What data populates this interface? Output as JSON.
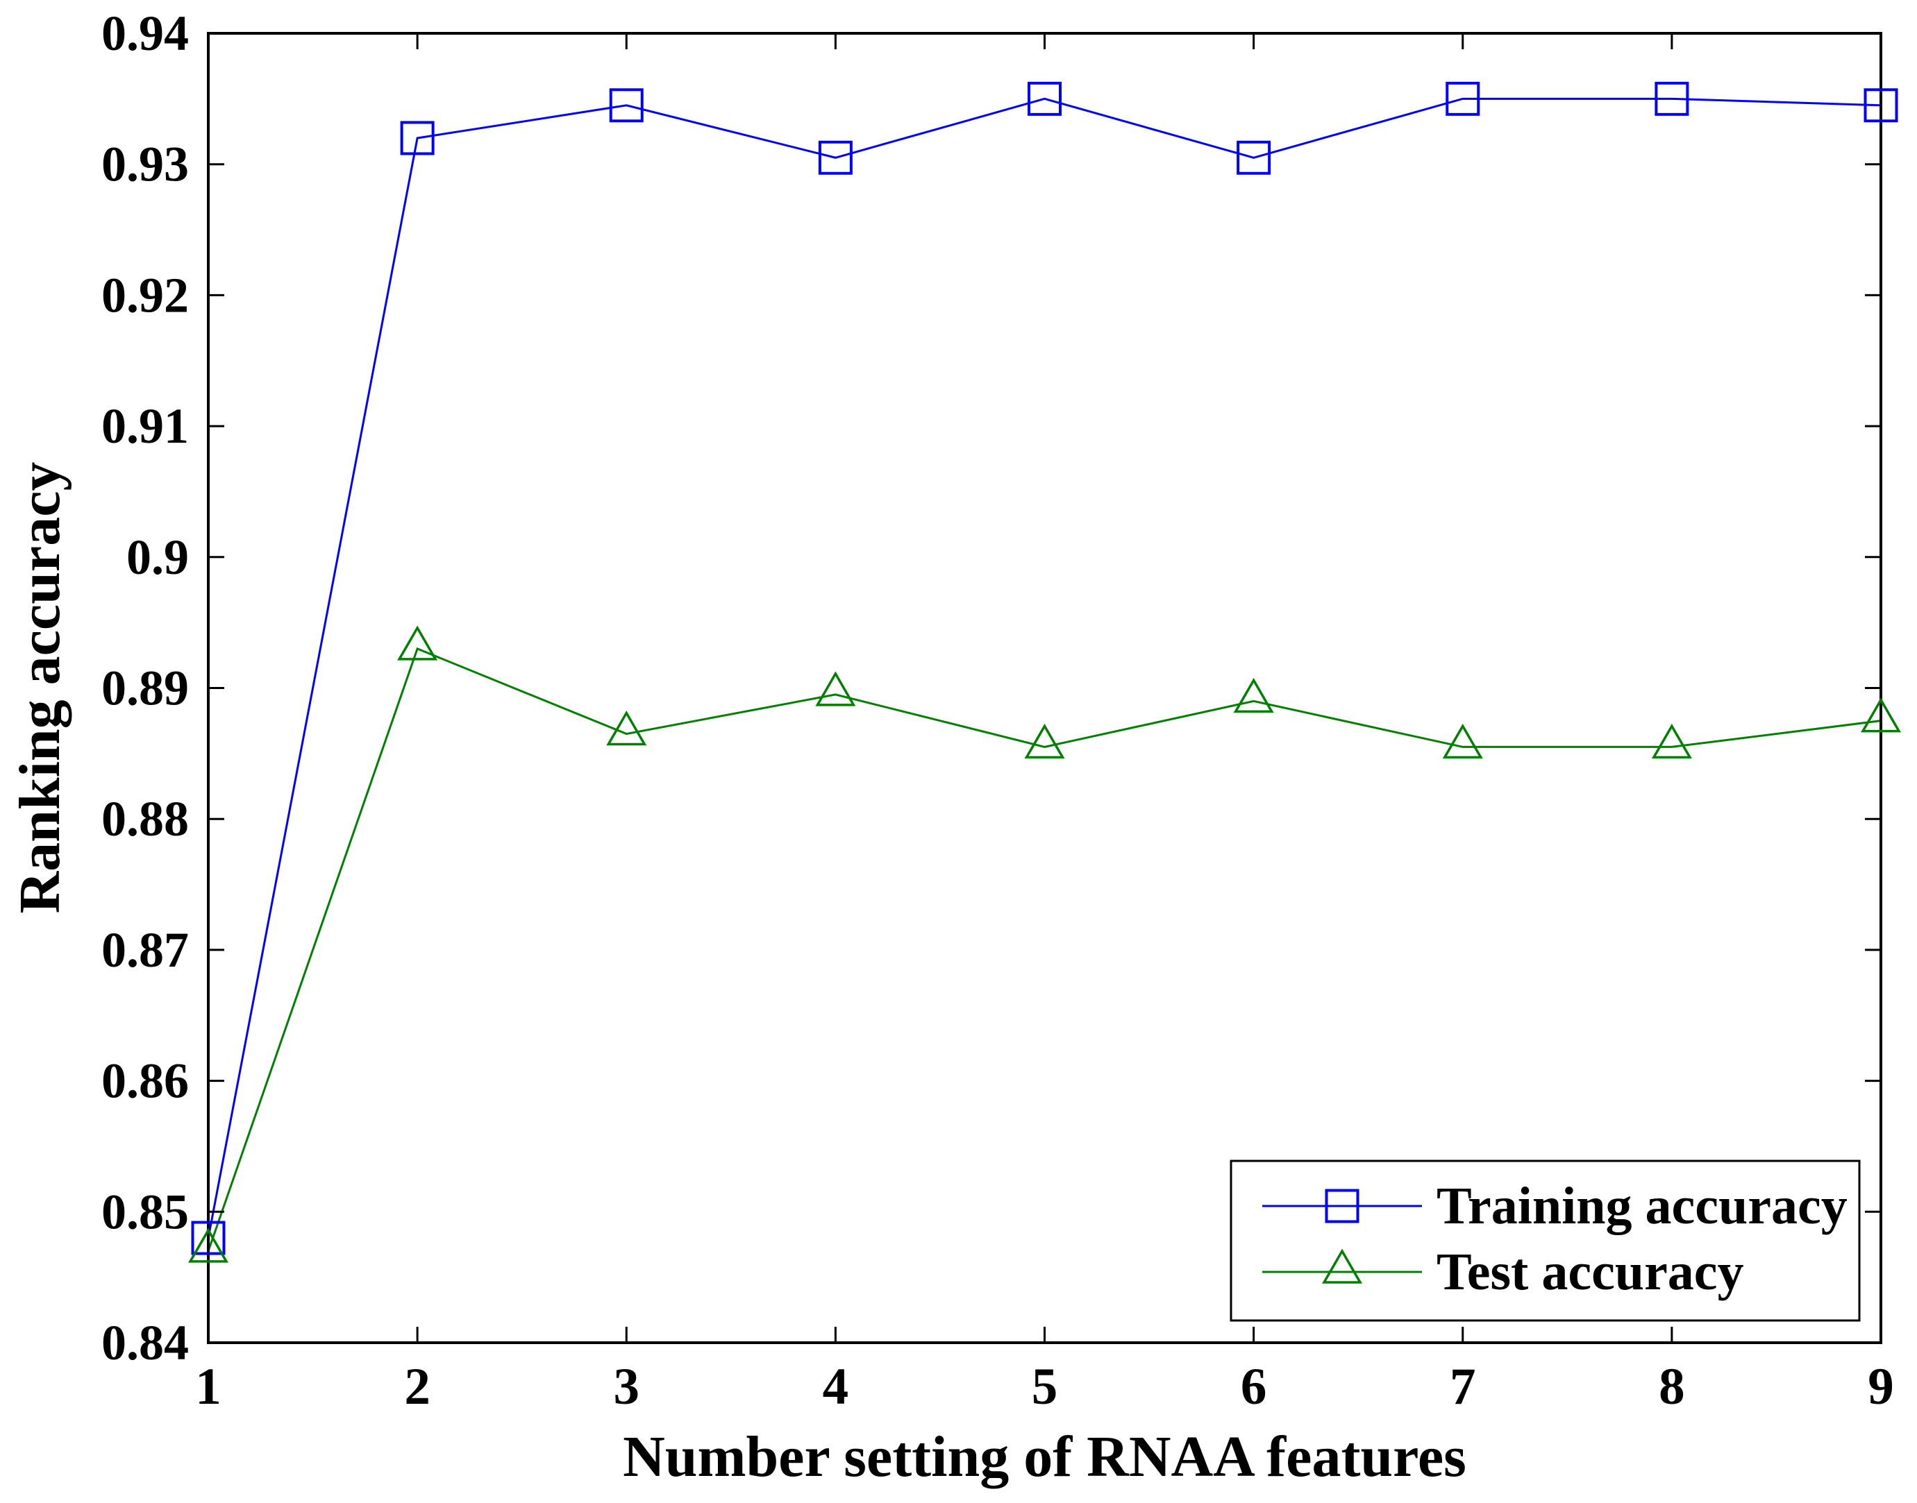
{
  "chart_data": {
    "type": "line",
    "title": "",
    "xlabel": "Number setting of RNAA features",
    "ylabel": "Ranking accuracy",
    "x": [
      1,
      2,
      3,
      4,
      5,
      6,
      7,
      8,
      9
    ],
    "x_tick_labels": [
      "1",
      "2",
      "3",
      "4",
      "5",
      "6",
      "7",
      "8",
      "9"
    ],
    "y_ticks": [
      0.84,
      0.85,
      0.86,
      0.87,
      0.88,
      0.89,
      0.9,
      0.91,
      0.92,
      0.93,
      0.94
    ],
    "y_tick_labels": [
      "0.84",
      "0.85",
      "0.86",
      "0.87",
      "0.88",
      "0.89",
      "0.9",
      "0.91",
      "0.92",
      "0.93",
      "0.94"
    ],
    "xlim": [
      1,
      9
    ],
    "ylim": [
      0.84,
      0.94
    ],
    "grid": false,
    "legend_position": "inside-bottom-right",
    "series": [
      {
        "name": "Training accuracy",
        "color": "#0000FF",
        "marker": "square",
        "values": [
          0.848,
          0.932,
          0.9345,
          0.9305,
          0.935,
          0.9305,
          0.935,
          0.935,
          0.9345
        ]
      },
      {
        "name": "Test accuracy",
        "color": "#008000",
        "marker": "triangle",
        "values": [
          0.847,
          0.893,
          0.8865,
          0.8895,
          0.8855,
          0.889,
          0.8855,
          0.8855,
          0.8875
        ]
      }
    ],
    "axis_color": "#000000"
  }
}
